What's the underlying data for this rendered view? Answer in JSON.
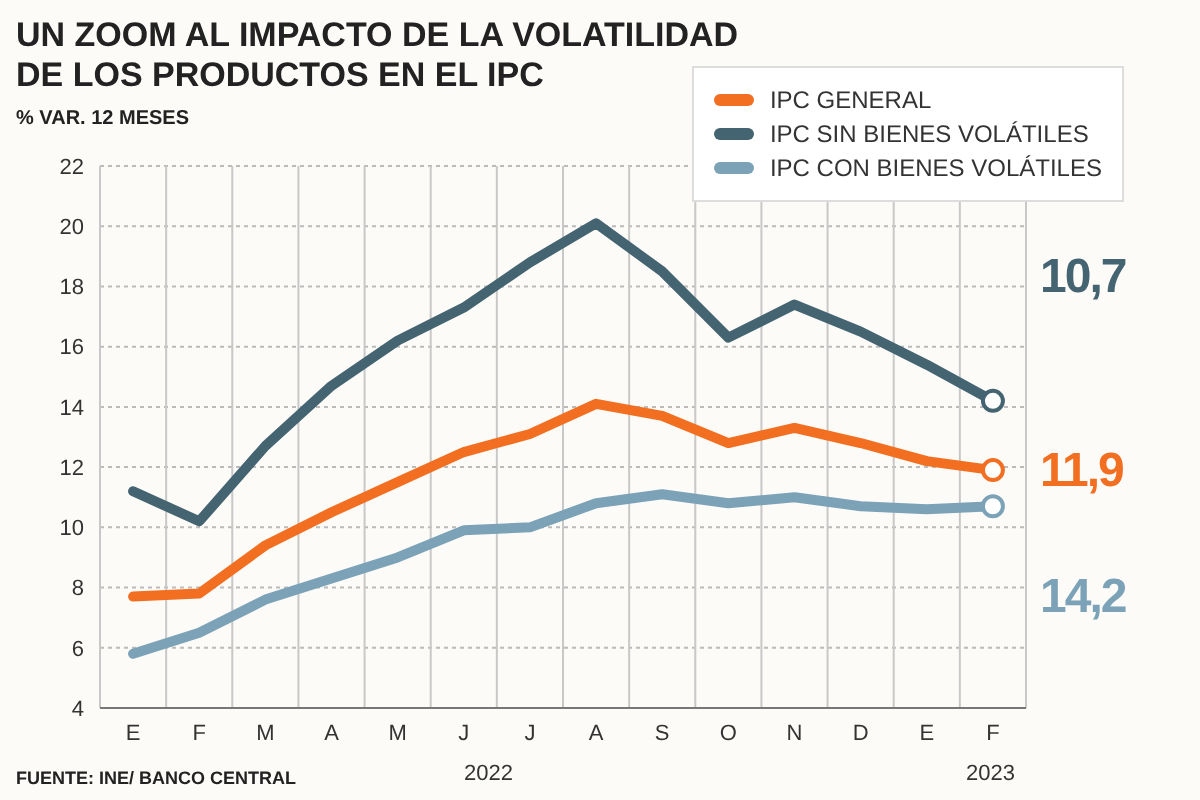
{
  "chart_data": {
    "type": "line",
    "title": "UN ZOOM AL IMPACTO DE LA VOLATILIDAD DE LOS PRODUCTOS EN EL IPC",
    "subtitle": "% VAR. 12 MESES",
    "categories": [
      "E",
      "F",
      "M",
      "A",
      "M",
      "J",
      "J",
      "A",
      "S",
      "O",
      "N",
      "D",
      "E",
      "F"
    ],
    "series": [
      {
        "name": "IPC GENERAL",
        "color": "#f26f21",
        "values": [
          7.7,
          7.8,
          9.4,
          10.5,
          11.5,
          12.5,
          13.1,
          14.1,
          13.7,
          12.8,
          13.3,
          12.8,
          12.2,
          11.9
        ]
      },
      {
        "name": "IPC SIN BIENES VOLÁTILES",
        "color": "#456471",
        "values": [
          11.2,
          10.2,
          12.7,
          14.7,
          16.2,
          17.3,
          18.8,
          20.1,
          18.5,
          16.3,
          17.4,
          16.5,
          15.4,
          14.2
        ]
      },
      {
        "name": "IPC CON BIENES VOLÁTILES",
        "color": "#7ba2b7",
        "values": [
          5.8,
          6.5,
          7.6,
          8.3,
          9.0,
          9.9,
          10.0,
          10.8,
          11.1,
          10.8,
          11.0,
          10.7,
          10.6,
          10.7
        ]
      }
    ],
    "ylim": [
      4,
      22
    ],
    "yticks": [
      4,
      6,
      8,
      10,
      12,
      14,
      16,
      18,
      20,
      22
    ],
    "grid": true,
    "legend": "top right",
    "line_style": "solid",
    "annotations": [
      "10,7",
      "11,9",
      "14,2",
      "2022",
      "2023",
      "FUENTE: INE/ BANCO CENTRAL"
    ]
  }
}
